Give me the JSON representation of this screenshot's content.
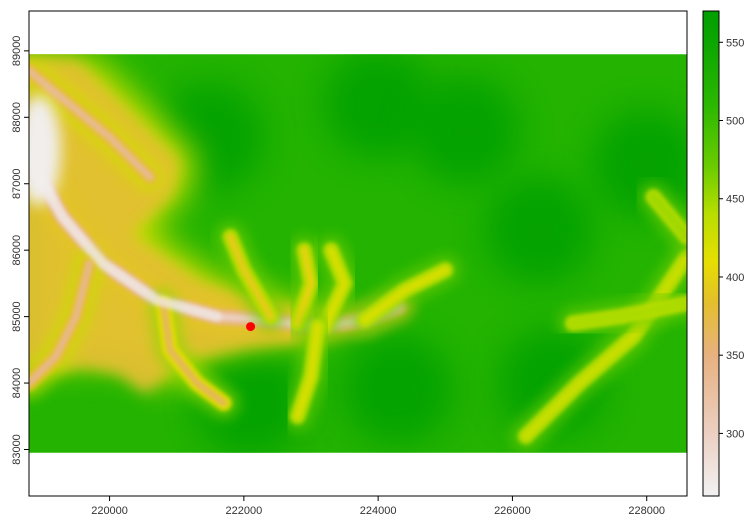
{
  "chart_data": {
    "type": "heatmap",
    "subtype": "raster-elevation-map",
    "title": "",
    "xlabel": "",
    "ylabel": "",
    "x_axis": {
      "range": [
        218800,
        228600
      ],
      "ticks": [
        220000,
        222000,
        224000,
        226000,
        228000
      ],
      "tick_labels": [
        "220000",
        "222000",
        "224000",
        "226000",
        "228000"
      ]
    },
    "y_axis": {
      "range": [
        82300,
        89600
      ],
      "ticks": [
        83000,
        84000,
        85000,
        86000,
        87000,
        88000,
        89000
      ],
      "tick_labels": [
        "83000",
        "84000",
        "85000",
        "86000",
        "87000",
        "88000",
        "89000"
      ],
      "label_orientation": "rotated-vertical"
    },
    "raster_extent": {
      "x": [
        218800,
        228600
      ],
      "y": [
        82950,
        88950
      ]
    },
    "value_range": [
      260,
      570
    ],
    "legend": {
      "type": "colorbar",
      "placement": "right",
      "ticks": [
        300,
        350,
        400,
        450,
        500,
        550
      ],
      "tick_labels": [
        "300",
        "350",
        "400",
        "450",
        "500",
        "550"
      ],
      "color_stops": [
        {
          "value": 260,
          "color": "#f2f2f2"
        },
        {
          "value": 300,
          "color": "#eccfc2"
        },
        {
          "value": 350,
          "color": "#e7b180"
        },
        {
          "value": 385,
          "color": "#e3c02a"
        },
        {
          "value": 410,
          "color": "#e6df00"
        },
        {
          "value": 440,
          "color": "#b9de00"
        },
        {
          "value": 470,
          "color": "#6ccc00"
        },
        {
          "value": 510,
          "color": "#2bb800"
        },
        {
          "value": 545,
          "color": "#10a800"
        },
        {
          "value": 570,
          "color": "#009e00"
        }
      ]
    },
    "valleys": [
      {
        "name": "main-valley",
        "value": 300,
        "points": [
          [
            218800,
            87400
          ],
          [
            219300,
            86500
          ],
          [
            219900,
            85800
          ],
          [
            220700,
            85250
          ],
          [
            221600,
            85000
          ],
          [
            222300,
            84950
          ],
          [
            223100,
            84850
          ],
          [
            223800,
            84950
          ],
          [
            224300,
            85150
          ]
        ]
      },
      {
        "name": "north-valley",
        "value": 335,
        "points": [
          [
            218800,
            88700
          ],
          [
            219400,
            88200
          ],
          [
            220000,
            87700
          ],
          [
            220600,
            87100
          ]
        ]
      },
      {
        "name": "west-branch",
        "value": 340,
        "points": [
          [
            219700,
            85800
          ],
          [
            219500,
            85000
          ],
          [
            219200,
            84400
          ],
          [
            218800,
            84000
          ]
        ]
      },
      {
        "name": "south-branch",
        "value": 365,
        "points": [
          [
            220800,
            85200
          ],
          [
            220900,
            84500
          ],
          [
            221300,
            84000
          ],
          [
            221700,
            83700
          ]
        ]
      },
      {
        "name": "north-branch",
        "value": 395,
        "points": [
          [
            222400,
            85000
          ],
          [
            222000,
            85700
          ],
          [
            221800,
            86200
          ]
        ]
      },
      {
        "name": "tributary-a",
        "value": 400,
        "points": [
          [
            222800,
            84900
          ],
          [
            223000,
            85500
          ],
          [
            222900,
            86000
          ]
        ]
      },
      {
        "name": "tributary-b",
        "value": 420,
        "points": [
          [
            223200,
            84850
          ],
          [
            223500,
            85500
          ],
          [
            223300,
            86000
          ]
        ]
      },
      {
        "name": "tributary-c",
        "value": 420,
        "points": [
          [
            223800,
            84950
          ],
          [
            224400,
            85400
          ],
          [
            225000,
            85700
          ]
        ]
      },
      {
        "name": "tributary-d",
        "value": 420,
        "points": [
          [
            223100,
            84850
          ],
          [
            223000,
            84100
          ],
          [
            222800,
            83500
          ]
        ]
      },
      {
        "name": "east-valley",
        "value": 430,
        "points": [
          [
            228600,
            85900
          ],
          [
            227800,
            84700
          ],
          [
            227000,
            84000
          ],
          [
            226200,
            83200
          ]
        ]
      },
      {
        "name": "east-branch",
        "value": 445,
        "points": [
          [
            228600,
            85200
          ],
          [
            227600,
            85000
          ],
          [
            226900,
            84900
          ]
        ]
      },
      {
        "name": "ne-valley",
        "value": 450,
        "points": [
          [
            228600,
            86200
          ],
          [
            228100,
            86800
          ]
        ]
      }
    ],
    "highlands": [
      {
        "value": 565,
        "points": [
          [
            224300,
            83900
          ],
          [
            228000,
            87300
          ],
          [
            224000,
            88200
          ],
          [
            226400,
            86300
          ],
          [
            226600,
            84000
          ],
          [
            221500,
            87700
          ],
          [
            225300,
            87800
          ],
          [
            222100,
            83700
          ]
        ]
      }
    ],
    "points": [
      {
        "name": "marker",
        "x": 222100,
        "y": 84850,
        "color": "#ff0000"
      }
    ]
  }
}
